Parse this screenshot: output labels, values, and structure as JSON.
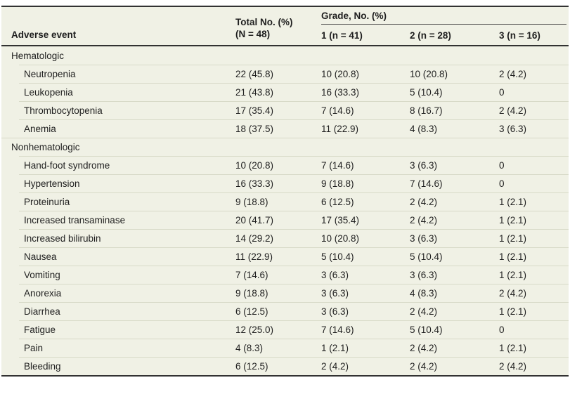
{
  "table": {
    "header": {
      "adverse_event": "Adverse event",
      "total_line1": "Total No. (%)",
      "total_line2": "(N = 48)",
      "grade_spanner": "Grade, No. (%)",
      "grade_cols": [
        "1 (n = 41)",
        "2 (n = 28)",
        "3 (n = 16)"
      ]
    },
    "sections": [
      {
        "name": "Hematologic",
        "rows": [
          {
            "label": "Neutropenia",
            "values": [
              "22 (45.8)",
              "10 (20.8)",
              "10 (20.8)",
              "2 (4.2)"
            ]
          },
          {
            "label": "Leukopenia",
            "values": [
              "21 (43.8)",
              "16 (33.3)",
              "5 (10.4)",
              "0"
            ]
          },
          {
            "label": "Thrombocytopenia",
            "values": [
              "17 (35.4)",
              "7 (14.6)",
              "8 (16.7)",
              "2 (4.2)"
            ]
          },
          {
            "label": "Anemia",
            "values": [
              "18 (37.5)",
              "11 (22.9)",
              "4 (8.3)",
              "3 (6.3)"
            ]
          }
        ]
      },
      {
        "name": "Nonhematologic",
        "rows": [
          {
            "label": "Hand-foot syndrome",
            "values": [
              "10 (20.8)",
              "7 (14.6)",
              "3 (6.3)",
              "0"
            ]
          },
          {
            "label": "Hypertension",
            "values": [
              "16 (33.3)",
              "9 (18.8)",
              "7 (14.6)",
              "0"
            ]
          },
          {
            "label": "Proteinuria",
            "values": [
              "9 (18.8)",
              "6 (12.5)",
              "2 (4.2)",
              "1 (2.1)"
            ]
          },
          {
            "label": "Increased transaminase",
            "values": [
              "20 (41.7)",
              "17 (35.4)",
              "2 (4.2)",
              "1 (2.1)"
            ]
          },
          {
            "label": "Increased bilirubin",
            "values": [
              "14 (29.2)",
              "10 (20.8)",
              "3 (6.3)",
              "1 (2.1)"
            ]
          },
          {
            "label": "Nausea",
            "values": [
              "11 (22.9)",
              "5 (10.4)",
              "5 (10.4)",
              "1 (2.1)"
            ]
          },
          {
            "label": "Vomiting",
            "values": [
              "7 (14.6)",
              "3 (6.3)",
              "3 (6.3)",
              "1 (2.1)"
            ]
          },
          {
            "label": "Anorexia",
            "values": [
              "9 (18.8)",
              "3 (6.3)",
              "4 (8.3)",
              "2 (4.2)"
            ]
          },
          {
            "label": "Diarrhea",
            "values": [
              "6 (12.5)",
              "3 (6.3)",
              "2 (4.2)",
              "1 (2.1)"
            ]
          },
          {
            "label": "Fatigue",
            "values": [
              "12 (25.0)",
              "7 (14.6)",
              "5 (10.4)",
              "0"
            ]
          },
          {
            "label": "Pain",
            "values": [
              "4 (8.3)",
              "1 (2.1)",
              "2 (4.2)",
              "1 (2.1)"
            ]
          },
          {
            "label": "Bleeding",
            "values": [
              "6 (12.5)",
              "2 (4.2)",
              "2 (4.2)",
              "2 (4.2)"
            ]
          }
        ]
      }
    ],
    "colors": {
      "table_background": "#f0f1e5",
      "row_separator": "#d8dac8",
      "rule": "#323232",
      "text": "#1f1f1f"
    }
  }
}
